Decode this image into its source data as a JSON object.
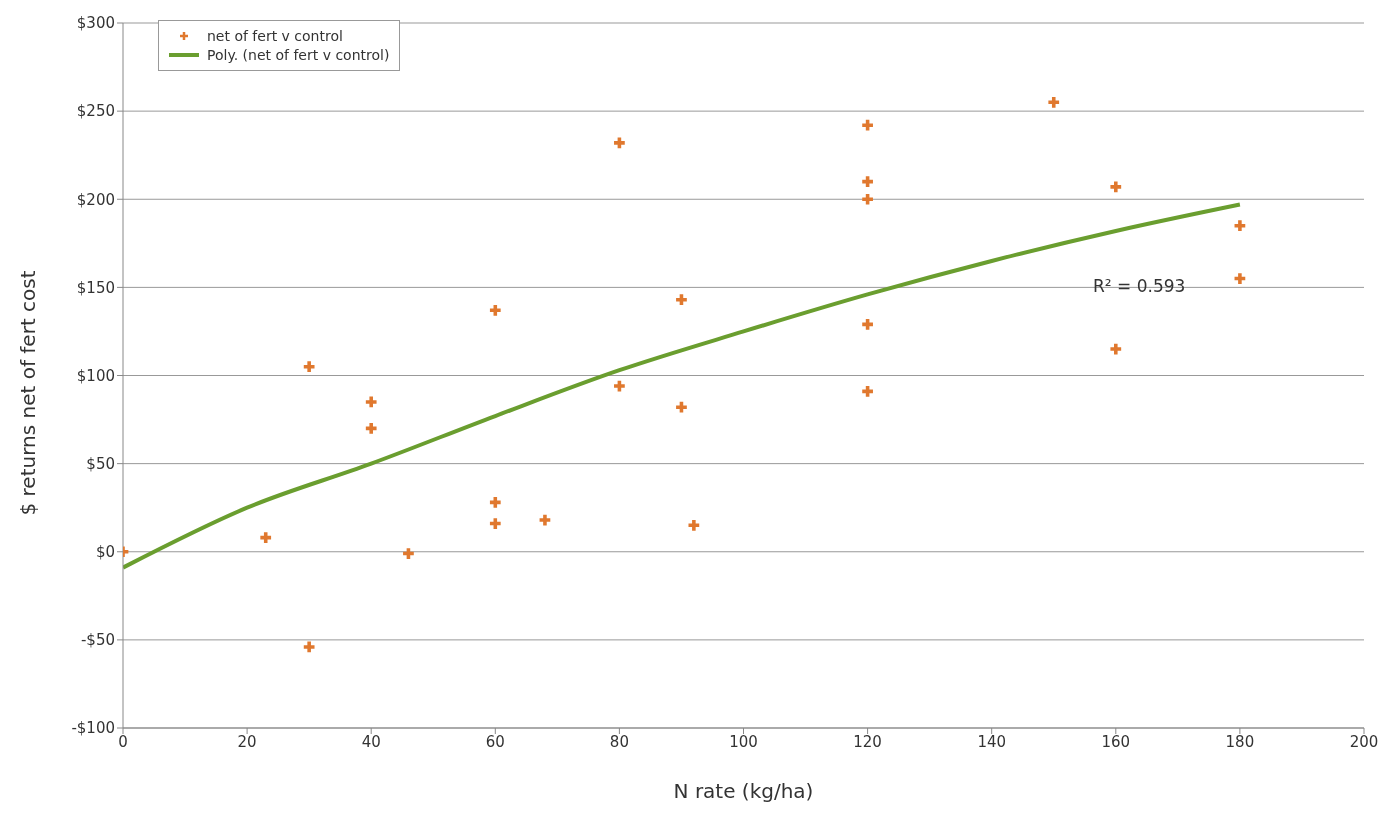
{
  "chart_data": {
    "type": "scatter",
    "xlabel": "N rate (kg/ha)",
    "ylabel": "$ returns net of fert cost",
    "xlim": [
      0,
      200
    ],
    "xticks": [
      0,
      20,
      40,
      60,
      80,
      100,
      120,
      140,
      160,
      180,
      200
    ],
    "ylim": [
      -100,
      300
    ],
    "yticks": [
      {
        "value": -100,
        "label": "-$100"
      },
      {
        "value": -50,
        "label": "-$50"
      },
      {
        "value": 0,
        "label": "$0"
      },
      {
        "value": 50,
        "label": "$50"
      },
      {
        "value": 100,
        "label": "$100"
      },
      {
        "value": 150,
        "label": "$150"
      },
      {
        "value": 200,
        "label": "$200"
      },
      {
        "value": 250,
        "label": "$250"
      },
      {
        "value": 300,
        "label": "$300"
      }
    ],
    "grid": "y",
    "legend": "top left",
    "series": [
      {
        "name": "net of fert v control",
        "marker": "cross",
        "color": "#e0782e",
        "x": [
          0,
          23,
          30,
          30,
          40,
          40,
          46,
          60,
          60,
          60,
          68,
          80,
          80,
          90,
          90,
          92,
          120,
          120,
          120,
          120,
          120,
          150,
          160,
          160,
          180,
          180
        ],
        "values": [
          0,
          8,
          105,
          -54,
          85,
          70,
          -1,
          137,
          28,
          16,
          18,
          232,
          94,
          143,
          82,
          15,
          242,
          210,
          200,
          129,
          91,
          255,
          207,
          115,
          185,
          155
        ]
      },
      {
        "name": "Poly. (net of fert v control)",
        "type": "line",
        "color": "#6a9e2f",
        "x": [
          0,
          20,
          40,
          60,
          80,
          100,
          120,
          140,
          160,
          180
        ],
        "values": [
          -9,
          25,
          50,
          77,
          103,
          125,
          146,
          165,
          182,
          197
        ]
      }
    ],
    "annotations": [
      "R² = 0.593"
    ]
  }
}
